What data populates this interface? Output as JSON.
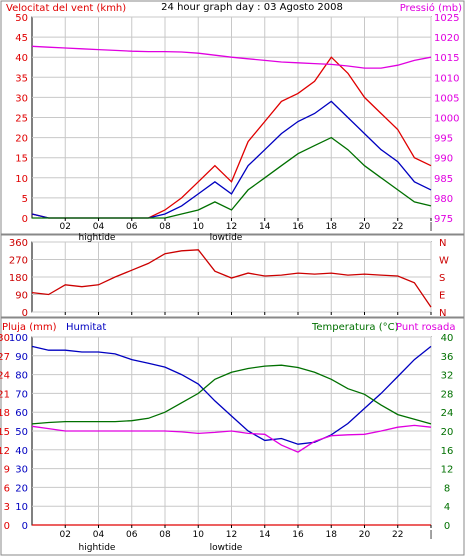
{
  "header": {
    "left_label": "Velocitat del vent (kmh)",
    "center_title": "24 hour graph day : 03 Agosto 2008",
    "right_label": "Pressió (mb)"
  },
  "bottom_header": {
    "rain_label": "Pluja (mm)",
    "humidity_label": "Humitat",
    "temperature_label": "Temperatura (°C)",
    "dewpoint_label": "Punt rosada"
  },
  "tide_labels": {
    "high": "hightide",
    "low": "lowtide"
  },
  "colors": {
    "wind_gust": "#e00000",
    "wind_avg": "#0000c0",
    "wind_min": "#007000",
    "pressure": "#e000e0",
    "direction": "#cc0000",
    "humidity": "#0000c0",
    "temperature": "#007000",
    "dewpoint": "#e000e0",
    "rain": "#e00000",
    "grid": "#c8c8c8",
    "frame": "#000000"
  },
  "chart_data": [
    {
      "type": "line",
      "title": "24 hour graph day : 03 Agosto 2008",
      "xlabel": "",
      "x_ticks": [
        "02",
        "04",
        "06",
        "08",
        "10",
        "12",
        "14",
        "16",
        "18",
        "20",
        "22",
        "|"
      ],
      "x_hours": [
        0,
        1,
        2,
        3,
        4,
        5,
        6,
        7,
        8,
        9,
        10,
        11,
        12,
        13,
        14,
        15,
        16,
        17,
        18,
        19,
        20,
        21,
        22,
        23,
        24
      ],
      "ylabel_left": "Velocitat del vent (kmh)",
      "ylim_left": [
        0,
        50
      ],
      "yticks_left": [
        0,
        5,
        10,
        15,
        20,
        25,
        30,
        35,
        40,
        45,
        50
      ],
      "ylabel_right": "Pressió (mb)",
      "ylim_right": [
        975,
        1025
      ],
      "yticks_right": [
        975,
        980,
        985,
        990,
        995,
        1000,
        1005,
        1010,
        1015,
        1020,
        1025
      ],
      "series": [
        {
          "axis": "left",
          "color_key": "wind_gust",
          "values": [
            1,
            0,
            0,
            0,
            0,
            0,
            0,
            0,
            2,
            5,
            9,
            13,
            9,
            19,
            24,
            29,
            31,
            34,
            40,
            36,
            30,
            26,
            22,
            15,
            13
          ]
        },
        {
          "axis": "left",
          "color_key": "wind_avg",
          "values": [
            1,
            0,
            0,
            0,
            0,
            0,
            0,
            0,
            1,
            3,
            6,
            9,
            6,
            13,
            17,
            21,
            24,
            26,
            29,
            25,
            21,
            17,
            14,
            9,
            7
          ]
        },
        {
          "axis": "left",
          "color_key": "wind_min",
          "values": [
            0,
            0,
            0,
            0,
            0,
            0,
            0,
            0,
            0,
            1,
            2,
            4,
            2,
            7,
            10,
            13,
            16,
            18,
            20,
            17,
            13,
            10,
            7,
            4,
            3
          ]
        },
        {
          "axis": "right",
          "color_key": "pressure",
          "values": [
            1017.7,
            1017.5,
            1017.3,
            1017.1,
            1016.9,
            1016.7,
            1016.5,
            1016.4,
            1016.4,
            1016.3,
            1016.0,
            1015.5,
            1015.0,
            1014.6,
            1014.2,
            1013.8,
            1013.6,
            1013.4,
            1013.2,
            1012.8,
            1012.3,
            1012.3,
            1013.0,
            1014.2,
            1015.0
          ]
        }
      ],
      "grid": true
    },
    {
      "type": "line",
      "xlabel": "",
      "ylim_left": [
        0,
        360
      ],
      "yticks_left": [
        0,
        90,
        180,
        270,
        360
      ],
      "ylabel_right_ticks": [
        "N",
        "W",
        "S",
        "E",
        "N"
      ],
      "series": [
        {
          "axis": "left",
          "color_key": "direction",
          "x_hours": [
            0,
            1,
            2,
            3,
            4,
            5,
            6,
            7,
            8,
            9,
            10,
            11,
            12,
            13,
            14,
            15,
            16,
            17,
            18,
            19,
            20,
            21,
            22,
            23,
            24
          ],
          "values": [
            100,
            90,
            140,
            130,
            140,
            180,
            215,
            250,
            300,
            315,
            320,
            210,
            175,
            200,
            185,
            190,
            200,
            195,
            200,
            190,
            195,
            190,
            185,
            150,
            25
          ]
        }
      ],
      "grid": true
    },
    {
      "type": "line",
      "xlabel": "",
      "x_ticks": [
        "02",
        "04",
        "06",
        "08",
        "10",
        "12",
        "14",
        "16",
        "18",
        "20",
        "22",
        "|"
      ],
      "ylabel_left_rain": "Pluja (mm)",
      "yticks_left_rain": [
        0,
        3,
        6,
        9,
        12,
        15,
        18,
        21,
        24,
        27,
        30
      ],
      "ylabel_left_humidity": "Humitat",
      "yticks_left_humidity": [
        0,
        10,
        20,
        30,
        40,
        50,
        60,
        70,
        80,
        90,
        100
      ],
      "ylabel_right": "Temperatura (°C)",
      "ylim_right": [
        0,
        40
      ],
      "yticks_right": [
        0,
        4,
        8,
        12,
        16,
        20,
        24,
        28,
        32,
        36,
        40
      ],
      "series": [
        {
          "axis": "humidity",
          "color_key": "humidity",
          "values": [
            95,
            93,
            93,
            92,
            92,
            91,
            88,
            86,
            84,
            80,
            75,
            66,
            58,
            50,
            45,
            46,
            43,
            44,
            48,
            54,
            62,
            70,
            79,
            88,
            95
          ]
        },
        {
          "axis": "temp",
          "color_key": "temperature",
          "values": [
            21.5,
            21.8,
            22,
            22,
            22,
            22,
            22.2,
            22.7,
            24,
            26,
            28,
            31,
            32.5,
            33.3,
            33.8,
            34,
            33.5,
            32.5,
            31,
            29,
            27.8,
            25.5,
            23.5,
            22.5,
            21.5
          ]
        },
        {
          "axis": "temp",
          "color_key": "dewpoint",
          "values": [
            21,
            20.5,
            20,
            20,
            20,
            20,
            20,
            20,
            20,
            19.8,
            19.5,
            19.7,
            20,
            19.5,
            19.3,
            17,
            15.5,
            17.8,
            19,
            19.2,
            19.3,
            20,
            20.8,
            21.2,
            20.8
          ]
        },
        {
          "axis": "rain",
          "color_key": "rain",
          "values": [
            0,
            0,
            0,
            0,
            0,
            0,
            0,
            0,
            0,
            0,
            0,
            0,
            0,
            0,
            0,
            0,
            0,
            0,
            0,
            0,
            0,
            0,
            0,
            0,
            0
          ]
        }
      ],
      "grid": true
    }
  ]
}
